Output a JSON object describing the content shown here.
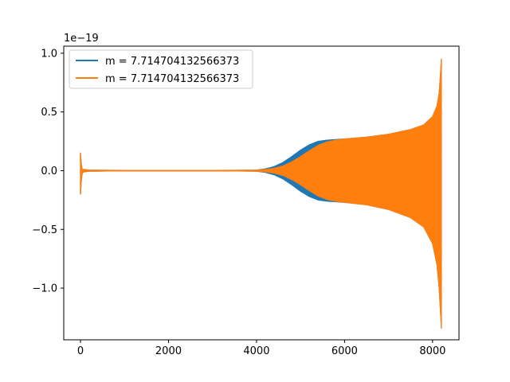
{
  "chart_data": {
    "type": "line",
    "title": "",
    "xlabel": "",
    "ylabel": "",
    "offset_text": "1e−19",
    "xlim": [
      -380,
      8600
    ],
    "ylim": [
      -1.44,
      1.06
    ],
    "x_ticks": [
      0,
      2000,
      4000,
      6000,
      8000
    ],
    "x_tick_labels": [
      "0",
      "2000",
      "4000",
      "6000",
      "8000"
    ],
    "y_ticks": [
      1.0,
      0.5,
      0.0,
      -0.5,
      -1.0
    ],
    "y_tick_labels": [
      "1.0",
      "0.5",
      "0.0",
      "−0.5",
      "−1.0"
    ],
    "grid": false,
    "legend_position": "top-left",
    "series": [
      {
        "name": "m = 7.714704132566373",
        "color": "#1f77b4",
        "envelope": {
          "x": [
            0,
            20,
            40,
            80,
            200,
            600,
            1000,
            2000,
            3000,
            3600,
            4000,
            4200,
            4400,
            4600,
            4800,
            5000,
            5200,
            5400,
            5600,
            5800,
            6000,
            6500,
            7000,
            7500,
            7800,
            8000,
            8100,
            8150,
            8180,
            8200
          ],
          "upper": [
            0.15,
            0.05,
            0.01,
            0.01,
            0.005,
            0.003,
            0.002,
            0.002,
            0.002,
            0.003,
            0.005,
            0.015,
            0.035,
            0.07,
            0.12,
            0.175,
            0.22,
            0.25,
            0.26,
            0.265,
            0.27,
            0.285,
            0.31,
            0.35,
            0.39,
            0.46,
            0.55,
            0.66,
            0.82,
            0.95
          ],
          "lower": [
            -0.2,
            -0.08,
            -0.02,
            -0.01,
            -0.005,
            -0.003,
            -0.002,
            -0.002,
            -0.002,
            -0.003,
            -0.005,
            -0.015,
            -0.035,
            -0.07,
            -0.12,
            -0.175,
            -0.22,
            -0.25,
            -0.26,
            -0.265,
            -0.27,
            -0.29,
            -0.33,
            -0.4,
            -0.48,
            -0.62,
            -0.8,
            -1.0,
            -1.2,
            -1.34
          ]
        }
      },
      {
        "name": "m = 7.714704132566373",
        "color": "#ff7f0e",
        "envelope": {
          "x": [
            0,
            20,
            40,
            80,
            200,
            600,
            1000,
            2000,
            3000,
            3600,
            4000,
            4200,
            4400,
            4600,
            4800,
            5000,
            5200,
            5400,
            5600,
            5800,
            6000,
            6500,
            7000,
            7500,
            7800,
            8000,
            8100,
            8150,
            8180,
            8200
          ],
          "upper": [
            0.15,
            0.05,
            0.01,
            0.01,
            0.005,
            0.003,
            0.002,
            0.002,
            0.002,
            0.003,
            0.005,
            0.01,
            0.02,
            0.04,
            0.075,
            0.12,
            0.17,
            0.215,
            0.245,
            0.26,
            0.27,
            0.285,
            0.31,
            0.35,
            0.39,
            0.46,
            0.55,
            0.66,
            0.82,
            0.95
          ],
          "lower": [
            -0.2,
            -0.08,
            -0.02,
            -0.01,
            -0.005,
            -0.003,
            -0.002,
            -0.002,
            -0.002,
            -0.003,
            -0.005,
            -0.01,
            -0.02,
            -0.04,
            -0.075,
            -0.12,
            -0.17,
            -0.215,
            -0.245,
            -0.26,
            -0.27,
            -0.29,
            -0.33,
            -0.4,
            -0.48,
            -0.62,
            -0.8,
            -1.0,
            -1.2,
            -1.34
          ]
        }
      }
    ]
  }
}
